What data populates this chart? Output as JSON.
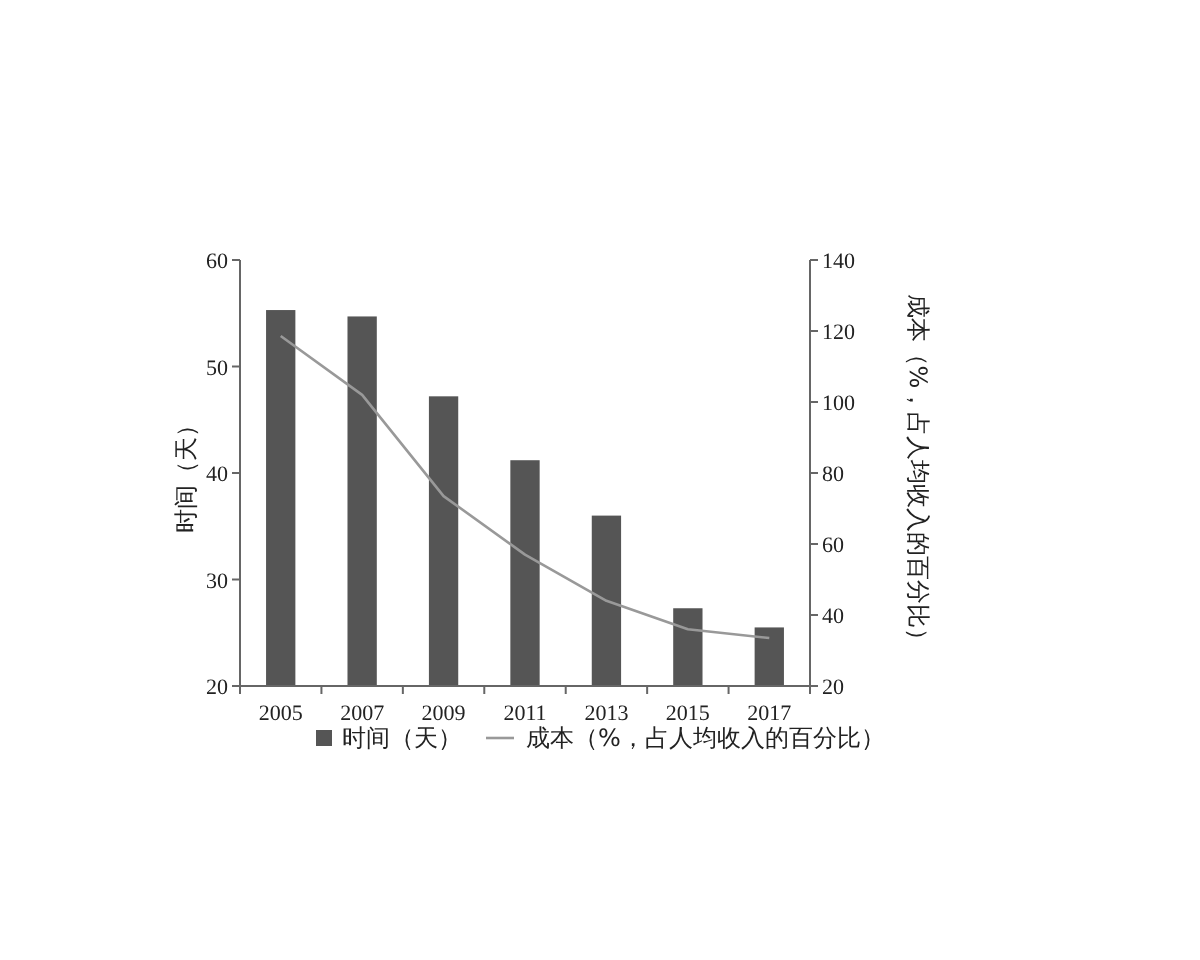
{
  "chart_data": {
    "type": "bar",
    "categories": [
      "2005",
      "2007",
      "2009",
      "2011",
      "2013",
      "2015",
      "2017"
    ],
    "ylabel": "时间（天）",
    "y2label": "成本（%，占人均收入的百分比）",
    "series": [
      {
        "name": "时间（天）",
        "color": "#555555",
        "values": [
          55.3,
          54.7,
          47.2,
          41.2,
          36.0,
          27.3,
          25.5
        ]
      },
      {
        "name": "成本（%，占人均收入的百分比）",
        "type": "line",
        "axis": "y2",
        "color": "#999999",
        "values": [
          118.6,
          102,
          73.5,
          57,
          44,
          36,
          33.5
        ]
      }
    ],
    "ylim": [
      20,
      60
    ],
    "yticks": [
      20,
      30,
      40,
      50,
      60
    ],
    "y2lim": [
      20,
      140
    ],
    "y2ticks": [
      20,
      40,
      60,
      80,
      100,
      120,
      140
    ],
    "grid": false,
    "legend": "bottom",
    "marker": "none",
    "line_style": "solid"
  }
}
